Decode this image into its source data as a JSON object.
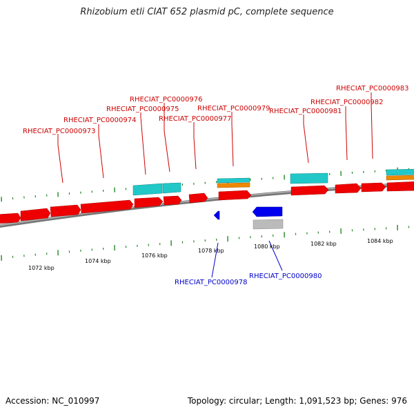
{
  "title": "Rhizobium etli CIAT 652 plasmid pC, complete sequence",
  "footer": {
    "accession": "Accession: NC_010997",
    "summary": "Topology: circular; Length: 1,091,523 bp; Genes: 976"
  },
  "colors": {
    "forward_gene": "#ee0000",
    "reverse_gene": "#0000ee",
    "forward_label": "#cc0000",
    "reverse_label": "#0000cc",
    "backbone": "#888888",
    "tick": "#228822",
    "cyan_feature": "#22c8c8",
    "orange_feature": "#ee8800",
    "gray_feature": "#bbbbbb"
  },
  "scale_labels": [
    "1072 kbp",
    "1074 kbp",
    "1076 kbp",
    "1078 kbp",
    "1080 kbp",
    "1082 kbp",
    "1084 kbp"
  ],
  "forward_labels": [
    "RHECIAT_PC0000973",
    "RHECIAT_PC0000974",
    "RHECIAT_PC0000975",
    "RHECIAT_PC0000976",
    "RHECIAT_PC0000977",
    "RHECIAT_PC0000979",
    "RHECIAT_PC0000981",
    "RHECIAT_PC0000982",
    "RHECIAT_PC0000983"
  ],
  "reverse_labels": [
    "RHECIAT_PC0000978",
    "RHECIAT_PC0000980"
  ]
}
